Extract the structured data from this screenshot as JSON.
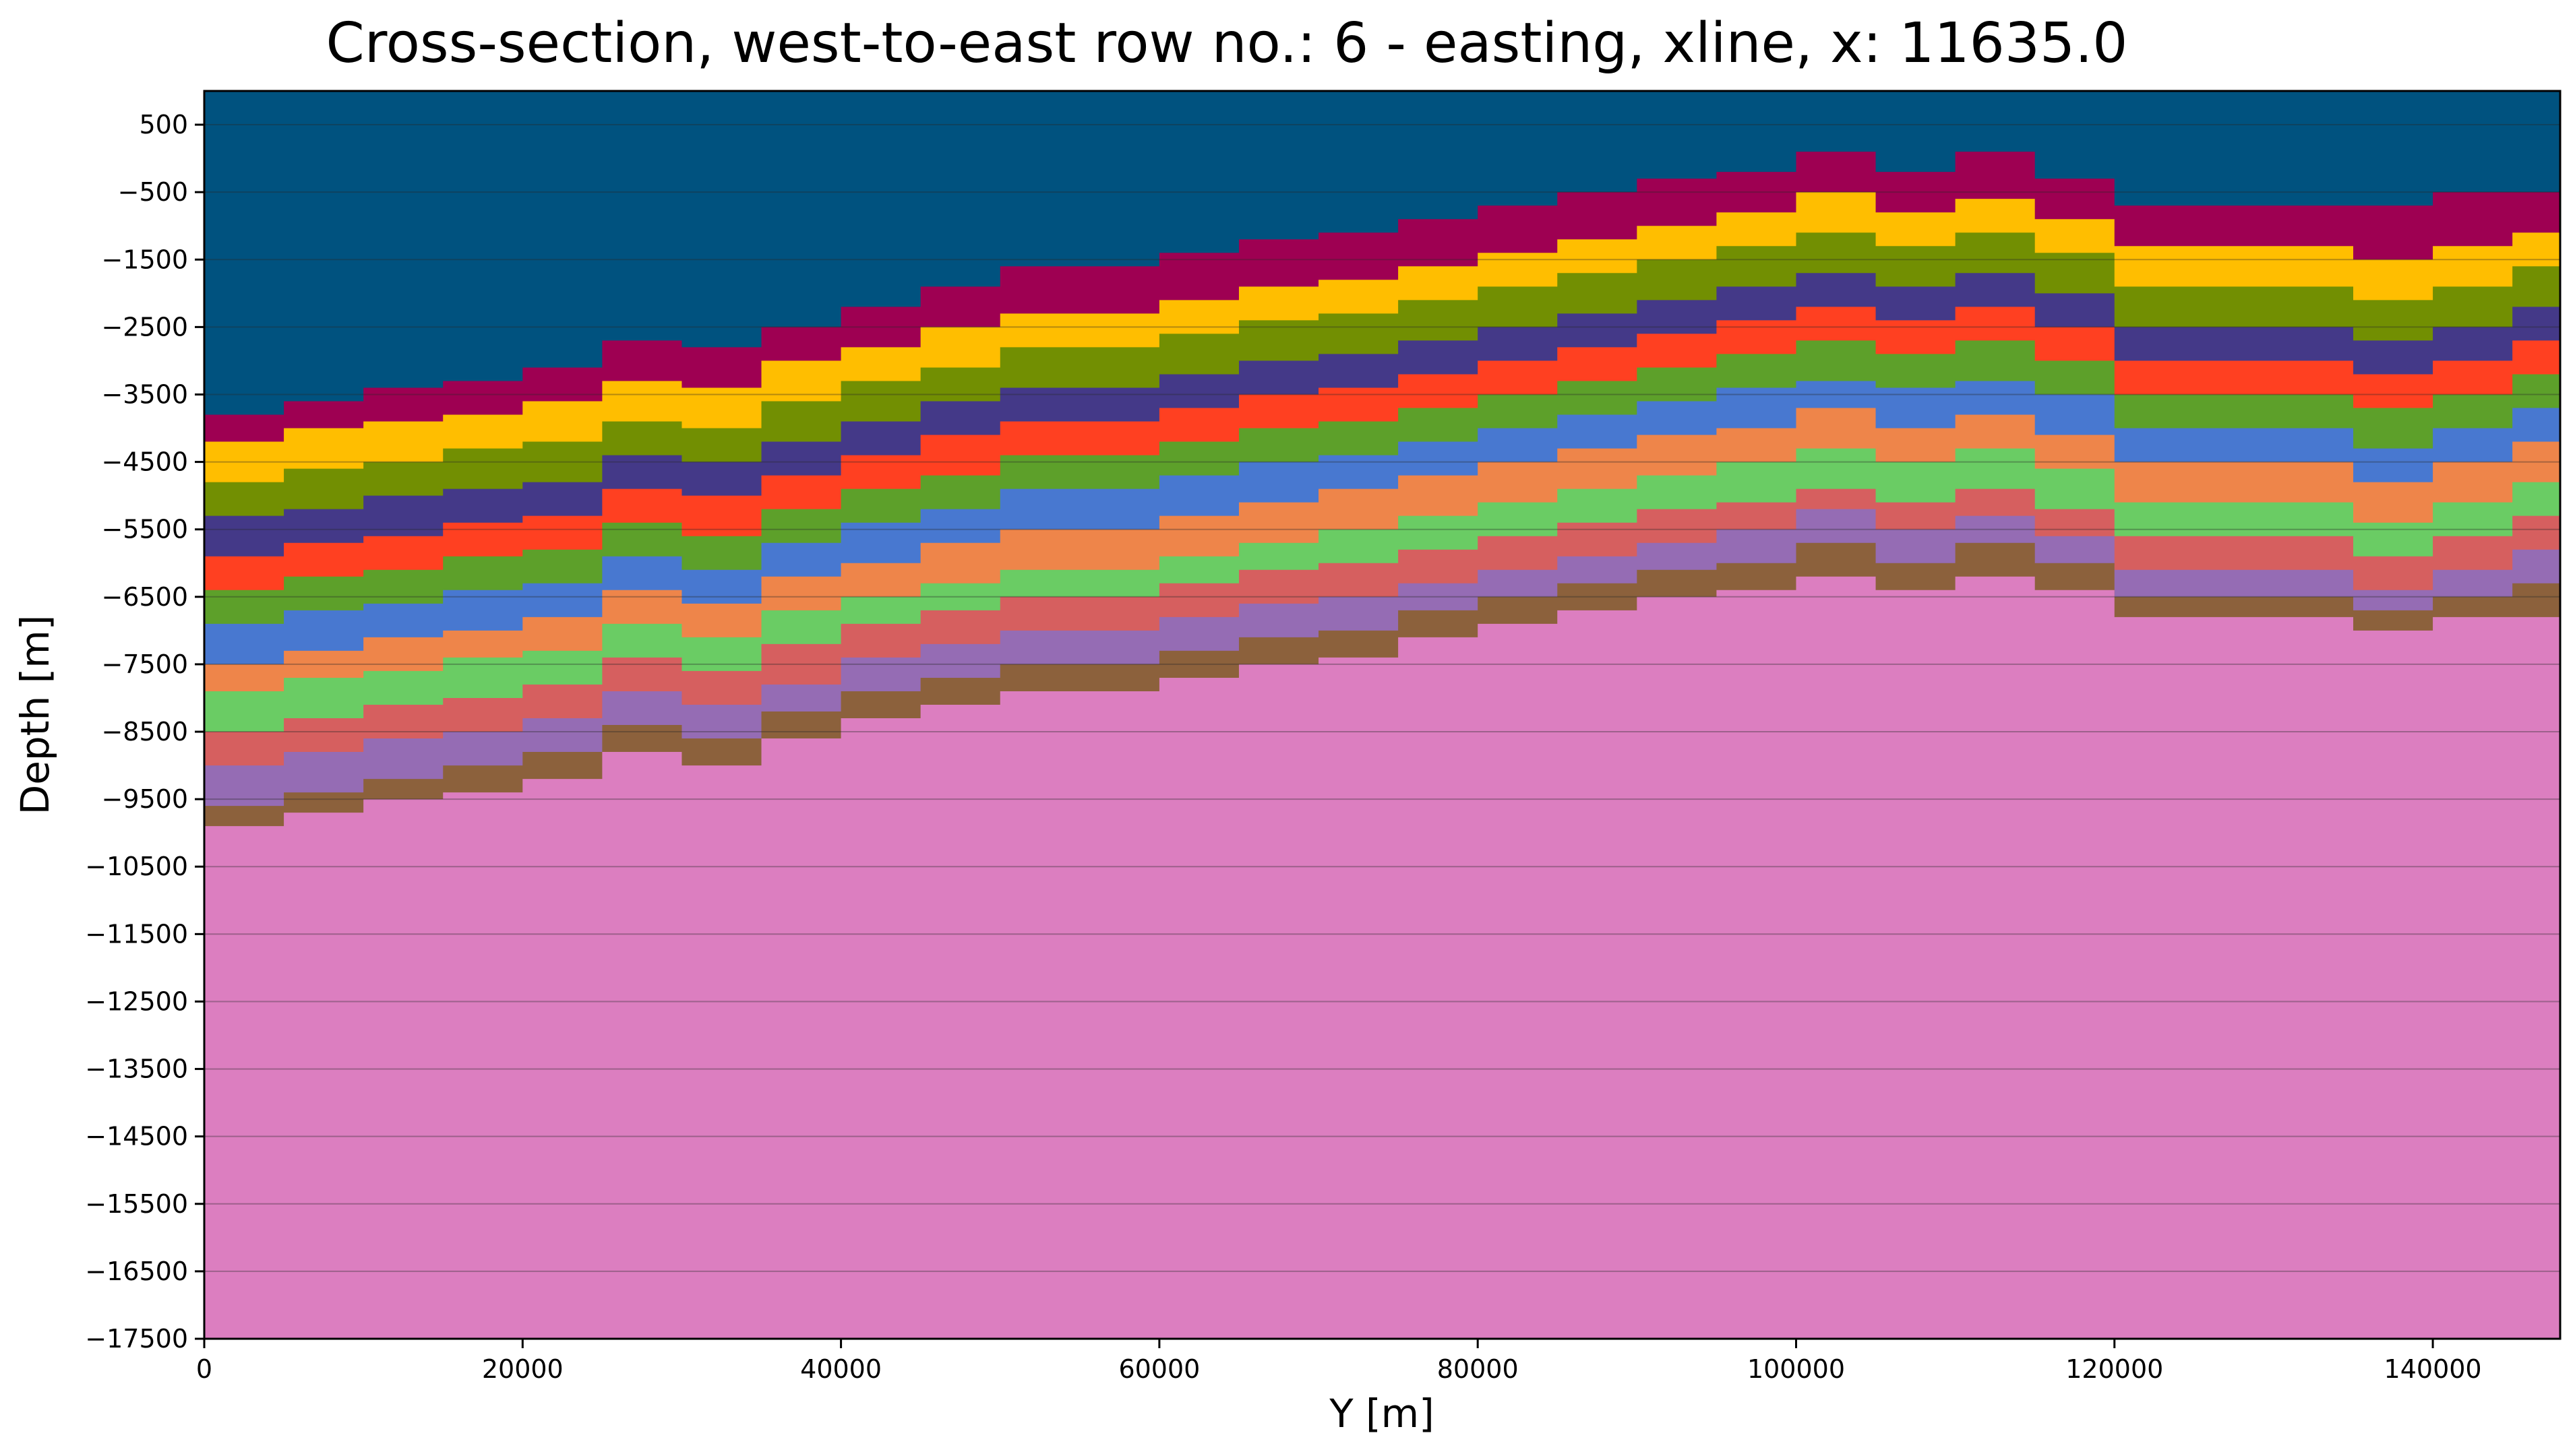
{
  "chart_data": {
    "type": "area",
    "title": "Cross-section, west-to-east row no.: 6 - easting, xline, x: 11635.0",
    "xlabel": "Y [m]",
    "ylabel": "Depth [m]",
    "xlim": [
      0,
      148000
    ],
    "ylim": [
      -17500,
      1000
    ],
    "x_ticks": [
      0,
      20000,
      40000,
      60000,
      80000,
      100000,
      120000,
      140000
    ],
    "y_ticks": [
      500,
      -500,
      -1500,
      -2500,
      -3500,
      -4500,
      -5500,
      -6500,
      -7500,
      -8500,
      -9500,
      -10500,
      -11500,
      -12500,
      -13500,
      -14500,
      -15500,
      -16500,
      -17500
    ],
    "grid": "horizontal",
    "x": [
      0,
      5000,
      10000,
      15000,
      20000,
      25000,
      30000,
      35000,
      40000,
      45000,
      50000,
      55000,
      60000,
      65000,
      70000,
      75000,
      80000,
      85000,
      90000,
      95000,
      100000,
      105000,
      110000,
      115000,
      120000,
      125000,
      130000,
      135000,
      140000,
      145000,
      148000
    ],
    "layers": [
      {
        "color": "#00527f",
        "values": [
          1000,
          1000,
          1000,
          1000,
          1000,
          1000,
          1000,
          1000,
          1000,
          1000,
          1000,
          1000,
          1000,
          1000,
          1000,
          1000,
          1000,
          1000,
          1000,
          1000,
          1000,
          1000,
          1000,
          1000,
          1000,
          1000,
          1000,
          1000,
          1000,
          1000,
          1000
        ]
      },
      {
        "color": "#9e0052",
        "values": [
          -3800,
          -3600,
          -3400,
          -3300,
          -3100,
          -2700,
          -2800,
          -2500,
          -2200,
          -1900,
          -1600,
          -1600,
          -1400,
          -1200,
          -1100,
          -900,
          -700,
          -500,
          -300,
          -200,
          100,
          -200,
          100,
          -300,
          -700,
          -700,
          -700,
          -700,
          -500,
          -500,
          -500
        ]
      },
      {
        "color": "#ffbe00",
        "values": [
          -4200,
          -4000,
          -3900,
          -3800,
          -3600,
          -3300,
          -3400,
          -3000,
          -2800,
          -2500,
          -2300,
          -2300,
          -2100,
          -1900,
          -1800,
          -1600,
          -1400,
          -1200,
          -1000,
          -800,
          -500,
          -800,
          -600,
          -900,
          -1300,
          -1300,
          -1300,
          -1500,
          -1300,
          -1100,
          -1100
        ]
      },
      {
        "color": "#728f02",
        "values": [
          -4800,
          -4600,
          -4500,
          -4300,
          -4200,
          -3900,
          -4000,
          -3600,
          -3300,
          -3100,
          -2800,
          -2800,
          -2600,
          -2400,
          -2300,
          -2100,
          -1900,
          -1700,
          -1500,
          -1300,
          -1100,
          -1300,
          -1100,
          -1400,
          -1900,
          -1900,
          -1900,
          -2100,
          -1900,
          -1600,
          -1600
        ]
      },
      {
        "color": "#443988",
        "values": [
          -5300,
          -5200,
          -5000,
          -4900,
          -4800,
          -4400,
          -4500,
          -4200,
          -3900,
          -3600,
          -3400,
          -3400,
          -3200,
          -3000,
          -2900,
          -2700,
          -2500,
          -2300,
          -2100,
          -1900,
          -1700,
          -1900,
          -1700,
          -2000,
          -2500,
          -2500,
          -2500,
          -2700,
          -2500,
          -2200,
          -2200
        ]
      },
      {
        "color": "#ff4021",
        "values": [
          -5900,
          -5700,
          -5600,
          -5400,
          -5300,
          -4900,
          -5000,
          -4700,
          -4400,
          -4100,
          -3900,
          -3900,
          -3700,
          -3500,
          -3400,
          -3200,
          -3000,
          -2800,
          -2600,
          -2400,
          -2200,
          -2400,
          -2200,
          -2500,
          -3000,
          -3000,
          -3000,
          -3200,
          -3000,
          -2700,
          -2700
        ]
      },
      {
        "color": "#5da02a",
        "values": [
          -6400,
          -6200,
          -6100,
          -5900,
          -5800,
          -5400,
          -5600,
          -5200,
          -4900,
          -4700,
          -4400,
          -4400,
          -4200,
          -4000,
          -3900,
          -3700,
          -3500,
          -3300,
          -3100,
          -2900,
          -2700,
          -2900,
          -2700,
          -3000,
          -3500,
          -3500,
          -3500,
          -3700,
          -3500,
          -3200,
          -3200
        ]
      },
      {
        "color": "#4878d0",
        "values": [
          -6900,
          -6700,
          -6600,
          -6400,
          -6300,
          -5900,
          -6100,
          -5700,
          -5400,
          -5200,
          -4900,
          -4900,
          -4700,
          -4500,
          -4400,
          -4200,
          -4000,
          -3800,
          -3600,
          -3400,
          -3300,
          -3400,
          -3300,
          -3500,
          -4000,
          -4000,
          -4000,
          -4300,
          -4000,
          -3700,
          -3700
        ]
      },
      {
        "color": "#ee854a",
        "values": [
          -7500,
          -7300,
          -7100,
          -7000,
          -6800,
          -6400,
          -6600,
          -6200,
          -6000,
          -5700,
          -5500,
          -5500,
          -5300,
          -5100,
          -4900,
          -4700,
          -4500,
          -4300,
          -4100,
          -4000,
          -3700,
          -4000,
          -3800,
          -4100,
          -4500,
          -4500,
          -4500,
          -4800,
          -4500,
          -4200,
          -4200
        ]
      },
      {
        "color": "#6acc64",
        "values": [
          -7900,
          -7700,
          -7600,
          -7400,
          -7300,
          -6900,
          -7100,
          -6700,
          -6500,
          -6300,
          -6100,
          -6100,
          -5900,
          -5700,
          -5500,
          -5300,
          -5100,
          -4900,
          -4700,
          -4500,
          -4300,
          -4500,
          -4300,
          -4600,
          -5100,
          -5100,
          -5100,
          -5400,
          -5100,
          -4800,
          -4800
        ]
      },
      {
        "color": "#d65f5f",
        "values": [
          -8500,
          -8300,
          -8100,
          -8000,
          -7800,
          -7400,
          -7600,
          -7200,
          -6900,
          -6700,
          -6500,
          -6500,
          -6300,
          -6100,
          -6000,
          -5800,
          -5600,
          -5400,
          -5200,
          -5100,
          -4900,
          -5100,
          -4900,
          -5200,
          -5600,
          -5600,
          -5600,
          -5900,
          -5600,
          -5300,
          -5300
        ]
      },
      {
        "color": "#956cb4",
        "values": [
          -9000,
          -8800,
          -8600,
          -8500,
          -8300,
          -7900,
          -8100,
          -7800,
          -7400,
          -7200,
          -7000,
          -7000,
          -6800,
          -6600,
          -6500,
          -6300,
          -6100,
          -5900,
          -5700,
          -5500,
          -5200,
          -5500,
          -5300,
          -5600,
          -6100,
          -6100,
          -6100,
          -6400,
          -6100,
          -5800,
          -5800
        ]
      },
      {
        "color": "#8c613c",
        "values": [
          -9600,
          -9400,
          -9200,
          -9000,
          -8800,
          -8400,
          -8600,
          -8200,
          -7900,
          -7700,
          -7500,
          -7500,
          -7300,
          -7100,
          -7000,
          -6700,
          -6500,
          -6300,
          -6100,
          -6000,
          -5700,
          -6000,
          -5700,
          -6000,
          -6500,
          -6500,
          -6500,
          -6700,
          -6500,
          -6300,
          -6300
        ]
      },
      {
        "color": "#dc7ec0",
        "values": [
          -9900,
          -9700,
          -9500,
          -9400,
          -9200,
          -8800,
          -9000,
          -8600,
          -8300,
          -8100,
          -7900,
          -7900,
          -7700,
          -7500,
          -7400,
          -7100,
          -6900,
          -6700,
          -6500,
          -6400,
          -6200,
          -6400,
          -6200,
          -6400,
          -6800,
          -6800,
          -6800,
          -7000,
          -6800,
          -6800,
          -6800
        ]
      }
    ]
  }
}
